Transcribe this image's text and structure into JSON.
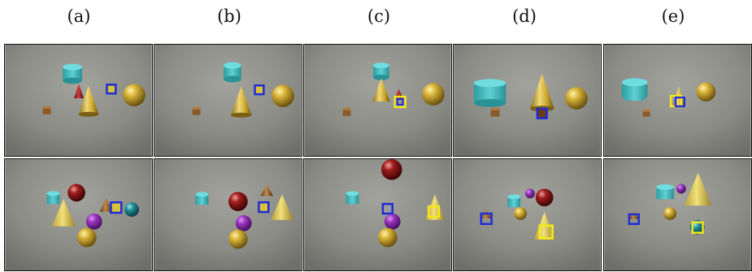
{
  "column_labels": [
    "(a)",
    "(b)",
    "(c)",
    "(d)",
    "(e)"
  ],
  "colors": {
    "background": "#ffffff",
    "floor": "#8f8f8a",
    "box_blue": "#1f2bd6",
    "box_yellow": "#f4e81a",
    "cyan": "#3fb8bc",
    "gold": "#c8a72a",
    "red": "#9a1a1a",
    "purple": "#9a34c0",
    "brown": "#8a5a2a"
  }
}
